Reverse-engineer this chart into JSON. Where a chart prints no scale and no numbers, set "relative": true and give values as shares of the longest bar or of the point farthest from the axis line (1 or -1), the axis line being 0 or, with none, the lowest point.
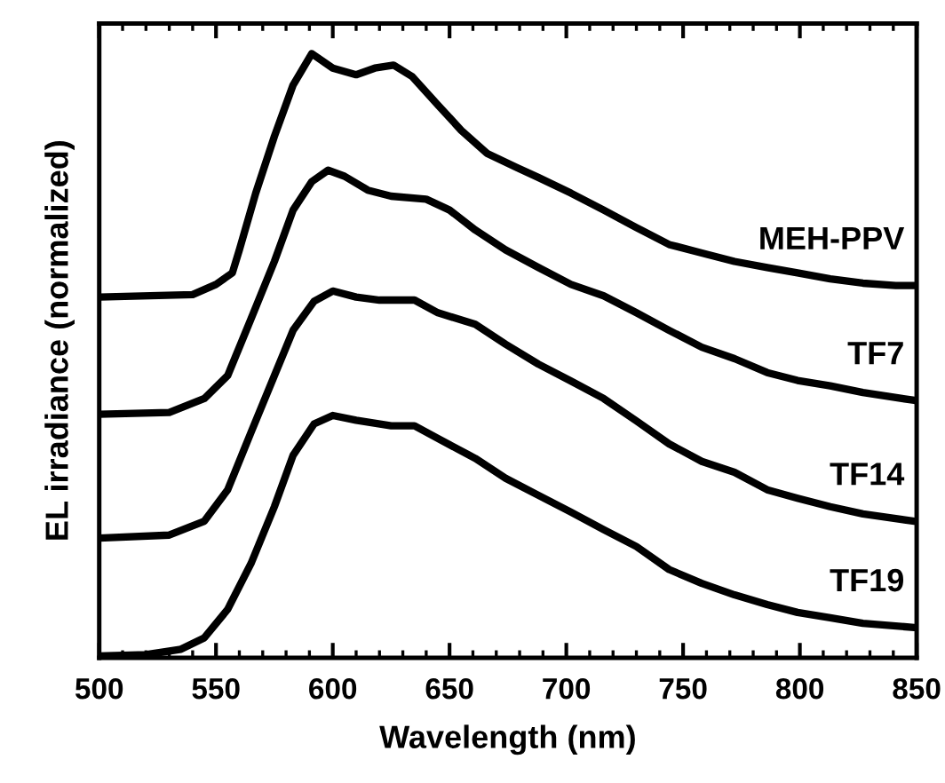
{
  "chart_data": {
    "type": "line",
    "relative": true,
    "xlabel": "Wavelength (nm)",
    "ylabel": "EL irradiance (normalized)",
    "xlim": [
      500,
      850
    ],
    "xticks": [
      500,
      550,
      600,
      650,
      700,
      750,
      800,
      850
    ],
    "tick_labels": "x",
    "grid": false,
    "legend": false,
    "marker": "none",
    "line_style": "solid",
    "series": [
      {
        "name": "MEH-PPV",
        "color": "#000000",
        "x": [
          500,
          540,
          550,
          557,
          560,
          567,
          575,
          583,
          591,
          600,
          610,
          618,
          626,
          634,
          645,
          655,
          666,
          679,
          688,
          702,
          716,
          730,
          744,
          758,
          772,
          786,
          799,
          813,
          827,
          841,
          849
        ],
        "values": [
          0.597,
          0.601,
          0.618,
          0.637,
          0.675,
          0.769,
          0.863,
          0.948,
          1.0,
          0.976,
          0.965,
          0.976,
          0.981,
          0.962,
          0.915,
          0.873,
          0.835,
          0.811,
          0.795,
          0.769,
          0.741,
          0.712,
          0.684,
          0.67,
          0.656,
          0.646,
          0.637,
          0.627,
          0.62,
          0.616,
          0.616
        ]
      },
      {
        "name": "TF7",
        "color": "#000000",
        "x": [
          500,
          530,
          545,
          555,
          565,
          575,
          583,
          591,
          598,
          605,
          615,
          625,
          640,
          650,
          661,
          674,
          688,
          702,
          716,
          730,
          744,
          758,
          772,
          786,
          799,
          813,
          827,
          849
        ],
        "values": [
          0.403,
          0.406,
          0.429,
          0.467,
          0.561,
          0.656,
          0.741,
          0.788,
          0.807,
          0.797,
          0.774,
          0.764,
          0.759,
          0.741,
          0.708,
          0.675,
          0.646,
          0.618,
          0.599,
          0.571,
          0.542,
          0.514,
          0.495,
          0.472,
          0.459,
          0.45,
          0.439,
          0.426
        ]
      },
      {
        "name": "TF14",
        "color": "#000000",
        "x": [
          500,
          530,
          545,
          555,
          565,
          575,
          583,
          592,
          600,
          610,
          620,
          635,
          645,
          661,
          674,
          688,
          702,
          716,
          730,
          744,
          758,
          772,
          786,
          799,
          813,
          827,
          849
        ],
        "values": [
          0.198,
          0.203,
          0.226,
          0.278,
          0.373,
          0.467,
          0.542,
          0.59,
          0.607,
          0.597,
          0.592,
          0.592,
          0.571,
          0.552,
          0.519,
          0.486,
          0.458,
          0.429,
          0.392,
          0.354,
          0.325,
          0.307,
          0.278,
          0.264,
          0.25,
          0.238,
          0.226
        ]
      },
      {
        "name": "TF19",
        "color": "#000000",
        "x": [
          500,
          520,
          535,
          545,
          555,
          565,
          575,
          583,
          592,
          600,
          610,
          625,
          635,
          645,
          661,
          674,
          688,
          702,
          716,
          730,
          744,
          758,
          772,
          786,
          799,
          813,
          827,
          849
        ],
        "values": [
          0.003,
          0.005,
          0.014,
          0.033,
          0.08,
          0.156,
          0.25,
          0.335,
          0.387,
          0.401,
          0.393,
          0.384,
          0.384,
          0.363,
          0.33,
          0.297,
          0.269,
          0.241,
          0.212,
          0.184,
          0.146,
          0.123,
          0.104,
          0.088,
          0.075,
          0.066,
          0.057,
          0.05
        ]
      }
    ]
  }
}
